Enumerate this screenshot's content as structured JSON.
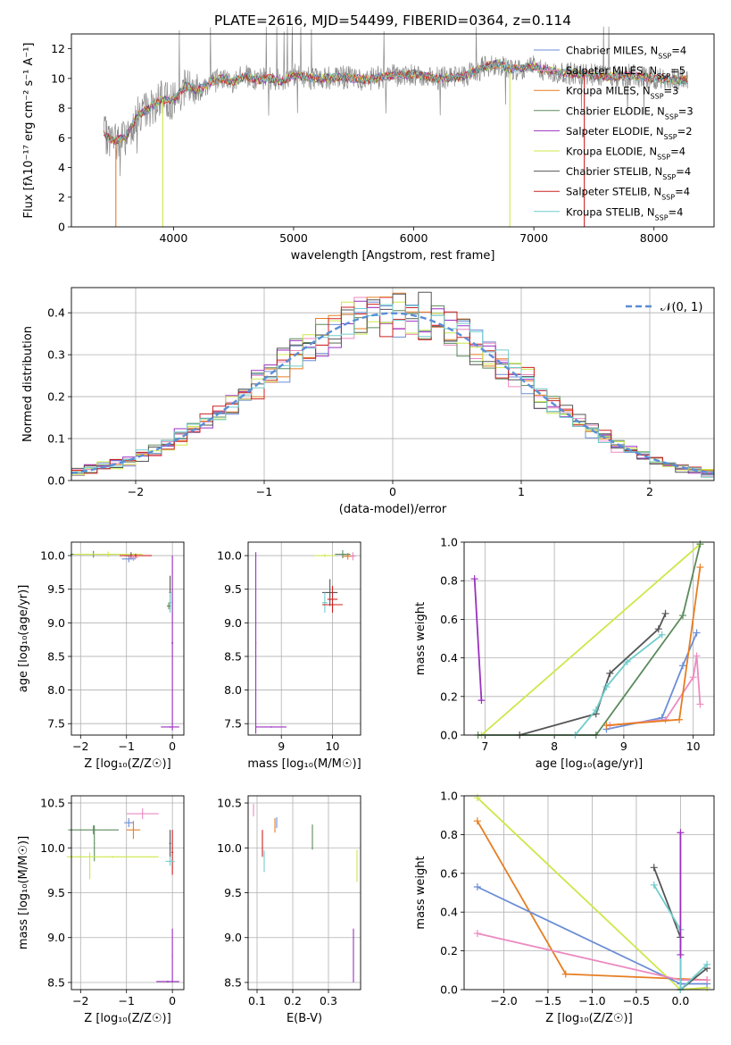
{
  "figure_title": "PLATE=2616, MJD=54499, FIBERID=0364, z=0.114",
  "colors": {
    "chabrier_miles": "#6b8ed6",
    "salpeter_miles": "#ec8ac0",
    "kroupa_miles": "#e67e22",
    "chabrier_elodie": "#5b8a5b",
    "salpeter_elodie": "#9b30c0",
    "kroupa_elodie": "#cce84a",
    "chabrier_stelib": "#555555",
    "salpeter_stelib": "#cc2222",
    "kroupa_stelib": "#70cccc",
    "gaussian": "#5b8ed6",
    "grid": "#b0b0b0"
  },
  "chart_data": [
    {
      "id": "spectrum",
      "type": "line",
      "title": "PLATE=2616, MJD=54499, FIBERID=0364, z=0.114",
      "xlabel": "wavelength [Angstrom, rest frame]",
      "ylabel": "Flux [fλ10⁻¹⁷ erg cm⁻² s⁻¹ A⁻¹]",
      "xlim": [
        3150,
        8500
      ],
      "ylim": [
        0,
        13
      ],
      "xticks": [
        4000,
        5000,
        6000,
        7000,
        8000
      ],
      "yticks": [
        0,
        2,
        4,
        6,
        8,
        10,
        12
      ],
      "grid": false,
      "legend_position": "right",
      "data_x": [
        3420,
        3500,
        3600,
        3700,
        3800,
        3900,
        4000,
        4100,
        4200,
        4300,
        4400,
        4500,
        4600,
        4700,
        4800,
        4900,
        5000,
        5200,
        5400,
        5600,
        5800,
        6000,
        6200,
        6400,
        6600,
        6700,
        6800,
        7000,
        7200,
        7400,
        7600,
        7800,
        8000,
        8200,
        8280
      ],
      "data_y": [
        6.2,
        5.8,
        6.0,
        7.5,
        8.0,
        8.6,
        8.5,
        9.5,
        9.2,
        9.7,
        10.0,
        9.8,
        10.2,
        9.9,
        10.0,
        9.8,
        10.2,
        10.0,
        10.1,
        9.9,
        10.2,
        10.3,
        10.0,
        10.1,
        10.8,
        11.0,
        10.6,
        10.8,
        10.4,
        10.3,
        10.1,
        10.2,
        10.0,
        9.9,
        9.9
      ],
      "series": [
        {
          "label": "Chabrier MILES, N",
          "sub": "SSP",
          "suffix": "=4"
        },
        {
          "label": "Salpeter MILES, N",
          "sub": "SSP",
          "suffix": "=5"
        },
        {
          "label": "Kroupa MILES, N",
          "sub": "SSP",
          "suffix": "=3"
        },
        {
          "label": "Chabrier ELODIE, N",
          "sub": "SSP",
          "suffix": "=3"
        },
        {
          "label": "Salpeter ELODIE, N",
          "sub": "SSP",
          "suffix": "=2"
        },
        {
          "label": "Kroupa ELODIE, N",
          "sub": "SSP",
          "suffix": "=4"
        },
        {
          "label": "Chabrier STELIB, N",
          "sub": "SSP",
          "suffix": "=4"
        },
        {
          "label": "Salpeter STELIB, N",
          "sub": "SSP",
          "suffix": "=4"
        },
        {
          "label": "Kroupa STELIB, N",
          "sub": "SSP",
          "suffix": "=4"
        }
      ]
    },
    {
      "id": "residuals",
      "type": "line",
      "xlabel": "(data-model)/error",
      "ylabel": "Normed distribution",
      "xlim": [
        -2.5,
        2.5
      ],
      "ylim": [
        0,
        0.46
      ],
      "xticks": [
        -2,
        -1,
        0,
        1,
        2
      ],
      "yticks": [
        0.0,
        0.1,
        0.2,
        0.3,
        0.4
      ],
      "grid": true,
      "legend_label": "𝒩(0, 1)",
      "legend_position": "top-right",
      "note": "step histograms of residuals for each model, with a dashed standard normal curve"
    },
    {
      "id": "age_vs_Z",
      "type": "scatter",
      "xlabel": "Z [log₁₀(Z/Z☉)]",
      "ylabel": "age  [log₁₀(age/yr)]",
      "xlim": [
        -2.2,
        0.25
      ],
      "ylim": [
        7.33,
        10.2
      ],
      "xticks": [
        -2,
        -1,
        0
      ],
      "yticks": [
        7.5,
        8.0,
        8.5,
        9.0,
        9.5,
        10.0
      ],
      "grid": true
    },
    {
      "id": "age_vs_mass",
      "type": "scatter",
      "xlabel": "mass [log₁₀(M/M☉)]",
      "xlim": [
        8.35,
        10.55
      ],
      "ylim": [
        7.33,
        10.2
      ],
      "xticks": [
        9,
        10
      ],
      "yticks": [
        7.5,
        8.0,
        8.5,
        9.0,
        9.5,
        10.0
      ],
      "grid": true
    },
    {
      "id": "mass_weight_vs_age",
      "type": "line",
      "xlabel": "age  [log₁₀(age/yr)]",
      "ylabel": "mass weight",
      "xlim": [
        6.7,
        10.3
      ],
      "ylim": [
        0,
        1
      ],
      "xticks": [
        7,
        8,
        9,
        10
      ],
      "yticks": [
        0.0,
        0.2,
        0.4,
        0.6,
        0.8,
        1.0
      ],
      "grid": true
    },
    {
      "id": "mass_vs_Z",
      "type": "scatter",
      "xlabel": "Z [log₁₀(Z/Z☉)]",
      "ylabel": "mass [log₁₀(M/M☉)]",
      "xlim": [
        -2.2,
        0.25
      ],
      "ylim": [
        8.42,
        10.58
      ],
      "xticks": [
        -2,
        -1,
        0
      ],
      "yticks": [
        8.5,
        9.0,
        9.5,
        10.0,
        10.5
      ],
      "grid": true
    },
    {
      "id": "mass_vs_ebv",
      "type": "scatter",
      "xlabel": "E(B-V)",
      "xlim": [
        0.075,
        0.39
      ],
      "ylim": [
        8.42,
        10.58
      ],
      "xticks": [
        0.1,
        0.2,
        0.3
      ],
      "yticks": [
        8.5,
        9.0,
        9.5,
        10.0,
        10.5
      ],
      "grid": true
    },
    {
      "id": "mass_weight_vs_Z",
      "type": "line",
      "xlabel": "Z [log₁₀(Z/Z☉)]",
      "ylabel": "mass weight",
      "xlim": [
        -2.45,
        0.38
      ],
      "ylim": [
        0,
        1
      ],
      "xticks": [
        -2.0,
        -1.5,
        -1.0,
        -0.5,
        0.0
      ],
      "yticks": [
        0.0,
        0.2,
        0.4,
        0.6,
        0.8,
        1.0
      ],
      "grid": true
    }
  ]
}
